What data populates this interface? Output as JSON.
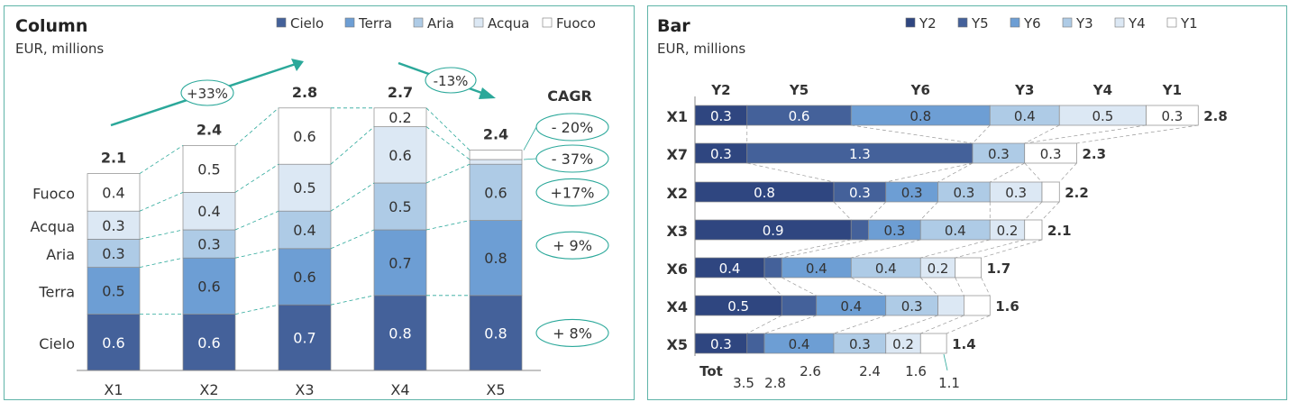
{
  "colors": {
    "Cielo": "#44619a",
    "Terra": "#6d9ed4",
    "Aria": "#aecbe6",
    "Acqua": "#dce8f4",
    "Fuoco": "#ffffff",
    "Y2": "#2f4680",
    "Y5": "#44619a",
    "Y6": "#6d9ed4",
    "Y3": "#aecbe6",
    "Y4": "#dce8f4",
    "Y1": "#ffffff",
    "accent": "#2ba89a"
  },
  "chart_data": [
    {
      "type": "bar",
      "stacked": true,
      "orientation": "vertical",
      "title": "Column",
      "subtitle": "EUR, millions",
      "categories": [
        "X1",
        "X2",
        "X3",
        "X4",
        "X5"
      ],
      "series": [
        {
          "name": "Cielo",
          "values": [
            0.6,
            0.6,
            0.7,
            0.8,
            0.8
          ]
        },
        {
          "name": "Terra",
          "values": [
            0.5,
            0.6,
            0.6,
            0.7,
            0.8
          ]
        },
        {
          "name": "Aria",
          "values": [
            0.3,
            0.3,
            0.4,
            0.5,
            0.6
          ]
        },
        {
          "name": "Acqua",
          "values": [
            0.3,
            0.4,
            0.5,
            0.6,
            0.05
          ]
        },
        {
          "name": "Fuoco",
          "values": [
            0.4,
            0.5,
            0.6,
            0.2,
            0.1
          ]
        }
      ],
      "show_labels": [
        [
          true,
          true,
          true,
          true,
          true
        ],
        [
          true,
          true,
          true,
          true,
          true
        ],
        [
          true,
          true,
          true,
          true,
          true
        ],
        [
          true,
          true,
          true,
          true,
          false
        ],
        [
          true,
          true,
          true,
          true,
          false
        ]
      ],
      "totals": [
        "2.1",
        "2.4",
        "2.8",
        "2.7",
        "2.4"
      ],
      "row_labels": [
        "Cielo",
        "Terra",
        "Aria",
        "Acqua",
        "Fuoco"
      ],
      "cagr_title": "CAGR",
      "cagr": [
        "+ 8%",
        "+ 9%",
        "+17%",
        "- 37%",
        "- 20%"
      ],
      "growth_annotations": [
        "+33%",
        "-13%"
      ],
      "ylim": [
        0,
        2.8
      ]
    },
    {
      "type": "bar",
      "stacked": true,
      "orientation": "horizontal",
      "title": "Bar",
      "subtitle": "EUR, millions",
      "categories": [
        "X1",
        "X7",
        "X2",
        "X3",
        "X6",
        "X4",
        "X5"
      ],
      "series_order": [
        "Y2",
        "Y5",
        "Y6",
        "Y3",
        "Y4",
        "Y1"
      ],
      "series": [
        {
          "name": "Y2",
          "values": [
            0.3,
            0.3,
            0.8,
            0.9,
            0.4,
            0.5,
            0.3
          ]
        },
        {
          "name": "Y5",
          "values": [
            0.6,
            1.3,
            0.3,
            0.1,
            0.1,
            0.2,
            0.1
          ]
        },
        {
          "name": "Y6",
          "values": [
            0.8,
            0.0,
            0.3,
            0.3,
            0.4,
            0.4,
            0.4
          ]
        },
        {
          "name": "Y3",
          "values": [
            0.4,
            0.3,
            0.3,
            0.4,
            0.4,
            0.3,
            0.3
          ]
        },
        {
          "name": "Y4",
          "values": [
            0.5,
            0.0,
            0.3,
            0.2,
            0.2,
            0.15,
            0.2
          ]
        },
        {
          "name": "Y1",
          "values": [
            0.3,
            0.3,
            0.1,
            0.1,
            0.15,
            0.15,
            0.15
          ]
        }
      ],
      "show_labels": [
        [
          true,
          true,
          true,
          true,
          true,
          true,
          true
        ],
        [
          true,
          true,
          true,
          false,
          false,
          false,
          false
        ],
        [
          true,
          false,
          true,
          true,
          true,
          true,
          true
        ],
        [
          true,
          true,
          true,
          true,
          true,
          true,
          true
        ],
        [
          true,
          false,
          true,
          true,
          true,
          false,
          true
        ],
        [
          true,
          true,
          false,
          false,
          false,
          false,
          false
        ]
      ],
      "totals": [
        "2.8",
        "2.3",
        "2.2",
        "2.1",
        "1.7",
        "1.6",
        "1.4"
      ],
      "column_headers": [
        "Y2",
        "Y5",
        "Y6",
        "Y3",
        "Y4",
        "Y1"
      ],
      "tot_label": "Tot",
      "tot_values": [
        "3.5",
        "2.8",
        "2.6",
        "2.4",
        "1.6",
        "1.1"
      ],
      "legend": [
        "Y2",
        "Y5",
        "Y6",
        "Y3",
        "Y4",
        "Y1"
      ]
    }
  ]
}
